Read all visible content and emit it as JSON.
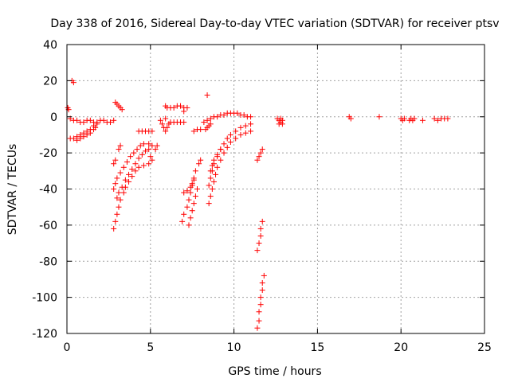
{
  "chart_data": {
    "type": "scatter",
    "title": "Day 338 of 2016, Sidereal Day-to-day VTEC variation (SDTVAR) for receiver ptsv",
    "xlabel": "GPS time / hours",
    "ylabel": "SDTVAR / TECUs",
    "xlim": [
      0,
      25
    ],
    "ylim": [
      -120,
      40
    ],
    "x_ticks": [
      "0",
      "5",
      "10",
      "15",
      "20",
      "25"
    ],
    "y_ticks": [
      "40",
      "20",
      "0",
      "-20",
      "-40",
      "-60",
      "-80",
      "-100",
      "-120"
    ],
    "grid": true,
    "marker": "+",
    "color": "#ff0000",
    "series": [
      {
        "name": "SDTVAR",
        "points": [
          [
            0.05,
            5
          ],
          [
            0.1,
            4
          ],
          [
            0.3,
            20
          ],
          [
            0.4,
            19
          ],
          [
            0.2,
            -1
          ],
          [
            0.4,
            -2
          ],
          [
            0.6,
            -2
          ],
          [
            0.8,
            -3
          ],
          [
            1.0,
            -3
          ],
          [
            1.2,
            -2
          ],
          [
            1.4,
            -2
          ],
          [
            1.6,
            -3
          ],
          [
            1.8,
            -3
          ],
          [
            2.0,
            -2
          ],
          [
            2.2,
            -2
          ],
          [
            2.4,
            -3
          ],
          [
            2.6,
            -3
          ],
          [
            2.8,
            -2
          ],
          [
            0.2,
            -12
          ],
          [
            0.4,
            -12
          ],
          [
            0.6,
            -11
          ],
          [
            0.8,
            -10
          ],
          [
            1.0,
            -9
          ],
          [
            1.2,
            -8
          ],
          [
            1.4,
            -7
          ],
          [
            1.6,
            -5
          ],
          [
            1.8,
            -4
          ],
          [
            0.6,
            -13
          ],
          [
            0.8,
            -12
          ],
          [
            1.0,
            -11
          ],
          [
            1.2,
            -10
          ],
          [
            1.4,
            -9
          ],
          [
            1.6,
            -7
          ],
          [
            1.7,
            -6
          ],
          [
            2.9,
            8
          ],
          [
            3.0,
            7
          ],
          [
            3.1,
            6
          ],
          [
            3.2,
            5
          ],
          [
            3.3,
            4
          ],
          [
            2.8,
            -62
          ],
          [
            2.9,
            -58
          ],
          [
            3.0,
            -54
          ],
          [
            3.1,
            -50
          ],
          [
            3.2,
            -46
          ],
          [
            3.4,
            -42
          ],
          [
            3.5,
            -39
          ],
          [
            3.7,
            -36
          ],
          [
            3.9,
            -33
          ],
          [
            4.1,
            -30
          ],
          [
            4.3,
            -28
          ],
          [
            4.6,
            -27
          ],
          [
            4.9,
            -26
          ],
          [
            2.8,
            -40
          ],
          [
            2.9,
            -37
          ],
          [
            3.0,
            -34
          ],
          [
            3.2,
            -31
          ],
          [
            3.4,
            -28
          ],
          [
            3.6,
            -25
          ],
          [
            3.8,
            -22
          ],
          [
            4.0,
            -20
          ],
          [
            4.2,
            -18
          ],
          [
            4.4,
            -16
          ],
          [
            4.6,
            -15
          ],
          [
            4.9,
            -15
          ],
          [
            5.1,
            -16
          ],
          [
            3.0,
            -45
          ],
          [
            3.1,
            -42
          ],
          [
            3.3,
            -39
          ],
          [
            3.5,
            -35
          ],
          [
            3.7,
            -32
          ],
          [
            3.9,
            -29
          ],
          [
            4.1,
            -26
          ],
          [
            4.3,
            -23
          ],
          [
            4.5,
            -21
          ],
          [
            4.7,
            -19
          ],
          [
            4.9,
            -18
          ],
          [
            2.8,
            -26
          ],
          [
            2.9,
            -24
          ],
          [
            3.1,
            -18
          ],
          [
            3.2,
            -16
          ],
          [
            4.3,
            -8
          ],
          [
            4.5,
            -8
          ],
          [
            4.7,
            -8
          ],
          [
            4.9,
            -8
          ],
          [
            5.1,
            -8
          ],
          [
            5.0,
            -22
          ],
          [
            5.1,
            -24
          ],
          [
            5.3,
            -18
          ],
          [
            5.4,
            -16
          ],
          [
            5.6,
            -2
          ],
          [
            5.7,
            -4
          ],
          [
            5.8,
            -6
          ],
          [
            5.9,
            -8
          ],
          [
            6.0,
            -6
          ],
          [
            6.1,
            -4
          ],
          [
            5.9,
            -1
          ],
          [
            6.2,
            -3
          ],
          [
            6.4,
            -3
          ],
          [
            6.6,
            -3
          ],
          [
            6.8,
            -3
          ],
          [
            7.0,
            -3
          ],
          [
            5.9,
            6
          ],
          [
            6.0,
            5
          ],
          [
            6.2,
            5
          ],
          [
            6.4,
            5
          ],
          [
            6.6,
            6
          ],
          [
            6.8,
            6
          ],
          [
            7.0,
            5
          ],
          [
            7.2,
            5
          ],
          [
            7.0,
            3
          ],
          [
            6.9,
            -58
          ],
          [
            7.0,
            -54
          ],
          [
            7.2,
            -50
          ],
          [
            7.3,
            -46
          ],
          [
            7.4,
            -42
          ],
          [
            7.5,
            -38
          ],
          [
            7.6,
            -34
          ],
          [
            7.7,
            -30
          ],
          [
            7.9,
            -26
          ],
          [
            8.0,
            -24
          ],
          [
            7.0,
            -42
          ],
          [
            7.2,
            -41
          ],
          [
            7.4,
            -39
          ],
          [
            7.5,
            -37
          ],
          [
            7.6,
            -35
          ],
          [
            7.3,
            -60
          ],
          [
            7.4,
            -56
          ],
          [
            7.5,
            -52
          ],
          [
            7.6,
            -48
          ],
          [
            7.7,
            -44
          ],
          [
            7.8,
            -40
          ],
          [
            7.6,
            -8
          ],
          [
            7.8,
            -7
          ],
          [
            8.0,
            -7
          ],
          [
            8.2,
            -3
          ],
          [
            8.4,
            -2
          ],
          [
            8.6,
            -1
          ],
          [
            8.8,
            0
          ],
          [
            9.0,
            0
          ],
          [
            9.2,
            1
          ],
          [
            9.4,
            1
          ],
          [
            9.6,
            2
          ],
          [
            9.8,
            2
          ],
          [
            10.0,
            2
          ],
          [
            10.2,
            2
          ],
          [
            10.4,
            1
          ],
          [
            10.6,
            1
          ],
          [
            10.8,
            0
          ],
          [
            11.0,
            0
          ],
          [
            8.3,
            -7
          ],
          [
            8.4,
            -6
          ],
          [
            8.5,
            -5
          ],
          [
            8.6,
            -4
          ],
          [
            8.4,
            12
          ],
          [
            8.5,
            -48
          ],
          [
            8.6,
            -44
          ],
          [
            8.7,
            -40
          ],
          [
            8.8,
            -36
          ],
          [
            8.9,
            -32
          ],
          [
            9.0,
            -28
          ],
          [
            9.2,
            -24
          ],
          [
            9.4,
            -20
          ],
          [
            9.6,
            -17
          ],
          [
            9.8,
            -14
          ],
          [
            10.1,
            -12
          ],
          [
            10.4,
            -10
          ],
          [
            10.7,
            -9
          ],
          [
            11.0,
            -8
          ],
          [
            8.5,
            -38
          ],
          [
            8.6,
            -34
          ],
          [
            8.7,
            -30
          ],
          [
            8.8,
            -26
          ],
          [
            9.0,
            -22
          ],
          [
            9.2,
            -18
          ],
          [
            9.4,
            -15
          ],
          [
            9.6,
            -12
          ],
          [
            9.8,
            -10
          ],
          [
            10.1,
            -8
          ],
          [
            10.4,
            -6
          ],
          [
            10.7,
            -5
          ],
          [
            11.0,
            -4
          ],
          [
            8.6,
            -30
          ],
          [
            8.7,
            -27
          ],
          [
            8.8,
            -24
          ],
          [
            9.0,
            -21
          ],
          [
            9.2,
            -18
          ],
          [
            11.4,
            -24
          ],
          [
            11.5,
            -22
          ],
          [
            11.6,
            -20
          ],
          [
            11.7,
            -18
          ],
          [
            11.4,
            -74
          ],
          [
            11.5,
            -70
          ],
          [
            11.6,
            -66
          ],
          [
            11.6,
            -62
          ],
          [
            11.7,
            -58
          ],
          [
            11.4,
            -117
          ],
          [
            11.5,
            -113
          ],
          [
            11.5,
            -108
          ],
          [
            11.6,
            -104
          ],
          [
            11.6,
            -100
          ],
          [
            11.7,
            -96
          ],
          [
            11.7,
            -92
          ],
          [
            11.8,
            -88
          ],
          [
            12.6,
            -1
          ],
          [
            12.7,
            -2
          ],
          [
            12.8,
            -3
          ],
          [
            12.9,
            -2
          ],
          [
            12.7,
            -4
          ],
          [
            12.8,
            -1
          ],
          [
            12.9,
            -4
          ],
          [
            16.9,
            0
          ],
          [
            17.0,
            -1
          ],
          [
            18.7,
            0
          ],
          [
            20.0,
            -1
          ],
          [
            20.1,
            -2
          ],
          [
            20.2,
            -1
          ],
          [
            20.5,
            -2
          ],
          [
            20.6,
            -1
          ],
          [
            20.7,
            -2
          ],
          [
            20.8,
            -1
          ],
          [
            21.3,
            -2
          ],
          [
            22.0,
            -1
          ],
          [
            22.2,
            -2
          ],
          [
            22.4,
            -1
          ],
          [
            22.6,
            -1
          ],
          [
            22.8,
            -1
          ]
        ]
      }
    ]
  }
}
